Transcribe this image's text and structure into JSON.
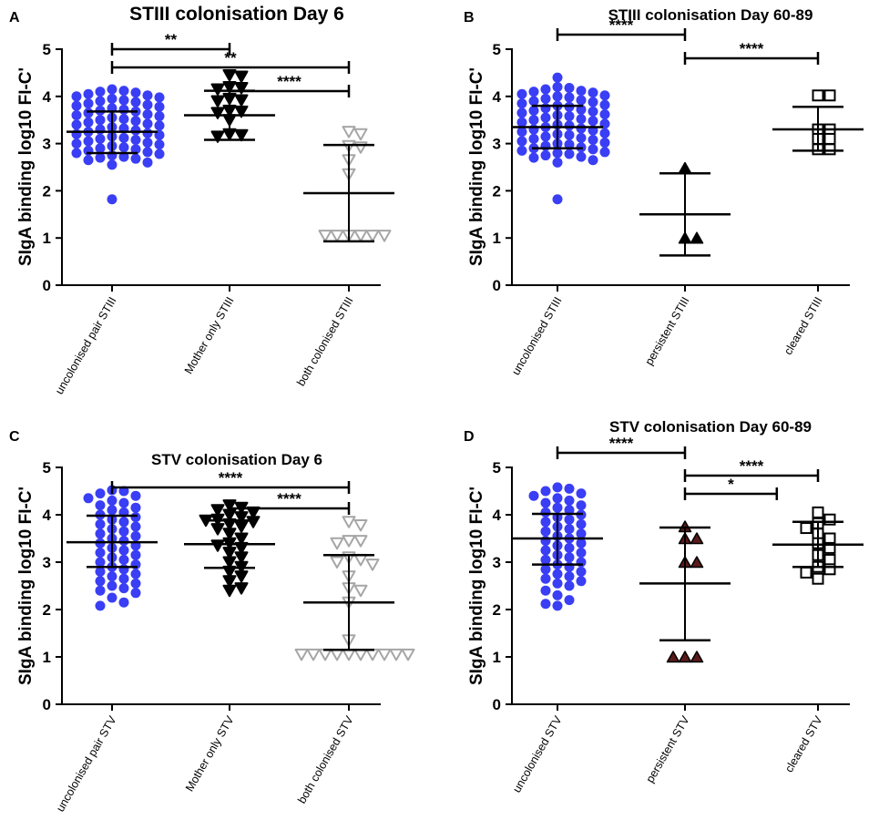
{
  "figure": {
    "colors": {
      "blue": "#3a3ef5",
      "black": "#000000",
      "gray": "#a6a6a6",
      "dark_red": "#5a1a1a",
      "axis": "#000000"
    }
  },
  "chart_data": [
    {
      "panel_label": "A",
      "type": "scatter",
      "title": "STIII colonisation Day 6",
      "ylabel": "SIgA binding log10 FI-C'",
      "ylim": [
        0,
        5
      ],
      "yticks": [
        "0",
        "1",
        "2",
        "3",
        "4",
        "5"
      ],
      "categories": [
        "uncolonised pair STIII",
        "Mother only STIII",
        "both colonised STIII"
      ],
      "groups": [
        {
          "marker": "circle",
          "color": "#3a3ef5",
          "mean": 3.25,
          "sd_low": 2.8,
          "sd_high": 3.68,
          "values": [
            4.15,
            4.12,
            4.1,
            4.08,
            4.05,
            4.02,
            4.0,
            3.98,
            3.95,
            3.92,
            3.9,
            3.88,
            3.85,
            3.82,
            3.8,
            3.78,
            3.75,
            3.72,
            3.7,
            3.68,
            3.65,
            3.62,
            3.6,
            3.58,
            3.55,
            3.52,
            3.5,
            3.48,
            3.45,
            3.42,
            3.4,
            3.38,
            3.35,
            3.32,
            3.3,
            3.28,
            3.25,
            3.22,
            3.2,
            3.18,
            3.15,
            3.12,
            3.1,
            3.08,
            3.05,
            3.02,
            3.0,
            2.98,
            2.95,
            2.92,
            2.9,
            2.88,
            2.85,
            2.82,
            2.8,
            2.78,
            2.75,
            2.72,
            2.7,
            2.68,
            2.65,
            2.6,
            2.55,
            1.82
          ]
        },
        {
          "marker": "triangle-down",
          "color": "#000000",
          "fill": "#000000",
          "mean": 3.6,
          "sd_low": 3.08,
          "sd_high": 4.12,
          "values": [
            4.45,
            4.42,
            4.2,
            4.18,
            4.15,
            3.95,
            3.92,
            3.9,
            3.7,
            3.68,
            3.65,
            3.5,
            3.2,
            3.18,
            3.15
          ]
        },
        {
          "marker": "triangle-down",
          "color": "#a6a6a6",
          "fill": "none",
          "mean": 1.95,
          "sd_low": 0.93,
          "sd_high": 2.97,
          "values": [
            3.25,
            3.2,
            2.95,
            2.92,
            2.65,
            2.35,
            1.05,
            1.05,
            1.05,
            1.05,
            1.05,
            1.05
          ]
        }
      ],
      "brackets": [
        {
          "from": 0,
          "to": 1,
          "label": "**"
        },
        {
          "from": 0,
          "to": 2,
          "label": "**"
        },
        {
          "from": 1,
          "to": 2,
          "label": "****"
        }
      ]
    },
    {
      "panel_label": "B",
      "type": "scatter",
      "title": "STIII colonisation Day 60-89",
      "ylabel": "SIgA binding log10 FI-C'",
      "ylim": [
        0,
        5
      ],
      "yticks": [
        "0",
        "1",
        "2",
        "3",
        "4",
        "5"
      ],
      "categories": [
        "uncolonised STIII",
        "persistent STIII",
        "cleared STIII"
      ],
      "groups": [
        {
          "marker": "circle",
          "color": "#3a3ef5",
          "mean": 3.35,
          "sd_low": 2.9,
          "sd_high": 3.8,
          "values": [
            4.4,
            4.2,
            4.18,
            4.15,
            4.12,
            4.1,
            4.08,
            4.05,
            4.02,
            4.0,
            3.98,
            3.95,
            3.92,
            3.9,
            3.88,
            3.85,
            3.82,
            3.8,
            3.78,
            3.75,
            3.72,
            3.7,
            3.68,
            3.65,
            3.62,
            3.6,
            3.58,
            3.55,
            3.52,
            3.5,
            3.48,
            3.45,
            3.42,
            3.4,
            3.38,
            3.35,
            3.32,
            3.3,
            3.28,
            3.25,
            3.22,
            3.2,
            3.18,
            3.15,
            3.12,
            3.1,
            3.08,
            3.05,
            3.02,
            3.0,
            2.98,
            2.95,
            2.92,
            2.9,
            2.88,
            2.85,
            2.82,
            2.8,
            2.78,
            2.75,
            2.72,
            2.7,
            2.65,
            2.6,
            1.82
          ]
        },
        {
          "marker": "triangle-up",
          "color": "#000000",
          "fill": "#000000",
          "mean": 1.5,
          "sd_low": 0.63,
          "sd_high": 2.37,
          "values": [
            2.48,
            1.0,
            1.0
          ]
        },
        {
          "marker": "square",
          "color": "#000000",
          "fill": "none",
          "mean": 3.3,
          "sd_low": 2.85,
          "sd_high": 3.78,
          "values": [
            4.02,
            4.02,
            3.3,
            3.3,
            3.1,
            3.1,
            2.88,
            2.88
          ]
        }
      ],
      "brackets": [
        {
          "from": 0,
          "to": 1,
          "label": "****"
        },
        {
          "from": 1,
          "to": 2,
          "label": "****"
        }
      ]
    },
    {
      "panel_label": "C",
      "type": "scatter",
      "title": "STV colonisation Day 6",
      "ylabel": "SIgA binding log10 FI-C'",
      "ylim": [
        0,
        5
      ],
      "yticks": [
        "0",
        "1",
        "2",
        "3",
        "4",
        "5"
      ],
      "categories": [
        "uncolonised pair STV",
        "Mother only STV",
        "both colonised STV"
      ],
      "groups": [
        {
          "marker": "circle",
          "color": "#3a3ef5",
          "mean": 3.42,
          "sd_low": 2.9,
          "sd_high": 3.98,
          "values": [
            4.52,
            4.5,
            4.45,
            4.4,
            4.35,
            4.3,
            4.25,
            4.2,
            4.15,
            4.1,
            4.05,
            4.0,
            3.95,
            3.9,
            3.85,
            3.8,
            3.75,
            3.7,
            3.65,
            3.6,
            3.55,
            3.5,
            3.45,
            3.4,
            3.35,
            3.3,
            3.25,
            3.2,
            3.15,
            3.1,
            3.05,
            3.0,
            2.95,
            2.9,
            2.85,
            2.8,
            2.75,
            2.7,
            2.65,
            2.6,
            2.55,
            2.5,
            2.45,
            2.4,
            2.35,
            2.25,
            2.15,
            2.08
          ]
        },
        {
          "marker": "triangle-down",
          "color": "#000000",
          "fill": "#000000",
          "mean": 3.38,
          "sd_low": 2.88,
          "sd_high": 3.88,
          "values": [
            4.2,
            4.15,
            4.1,
            4.05,
            4.0,
            3.95,
            3.9,
            3.88,
            3.85,
            3.8,
            3.75,
            3.7,
            3.6,
            3.5,
            3.4,
            3.35,
            3.3,
            3.2,
            3.1,
            3.0,
            2.9,
            2.8,
            2.7,
            2.6,
            2.45,
            2.4
          ]
        },
        {
          "marker": "triangle-down",
          "color": "#a6a6a6",
          "fill": "none",
          "mean": 2.15,
          "sd_low": 1.15,
          "sd_high": 3.15,
          "values": [
            3.85,
            3.78,
            3.45,
            3.45,
            3.4,
            3.1,
            3.05,
            3.0,
            2.95,
            2.7,
            2.45,
            2.4,
            2.15,
            1.35,
            1.05,
            1.05,
            1.05,
            1.05,
            1.05,
            1.05,
            1.05,
            1.05,
            1.05,
            1.05
          ]
        }
      ],
      "brackets": [
        {
          "from": 0,
          "to": 2,
          "label": "****"
        },
        {
          "from": 1,
          "to": 2,
          "label": "****"
        }
      ]
    },
    {
      "panel_label": "D",
      "type": "scatter",
      "title": "STV colonisation Day 60-89",
      "ylabel": "SIgA binding log10 FI-C'",
      "ylim": [
        0,
        5
      ],
      "yticks": [
        "0",
        "1",
        "2",
        "3",
        "4",
        "5"
      ],
      "categories": [
        "uncolonised STV",
        "persistent STV",
        "cleared STV"
      ],
      "groups": [
        {
          "marker": "circle",
          "color": "#3a3ef5",
          "mean": 3.5,
          "sd_low": 2.95,
          "sd_high": 4.02,
          "values": [
            4.58,
            4.55,
            4.5,
            4.45,
            4.4,
            4.35,
            4.3,
            4.25,
            4.2,
            4.15,
            4.1,
            4.05,
            4.0,
            3.95,
            3.9,
            3.85,
            3.8,
            3.75,
            3.7,
            3.65,
            3.6,
            3.55,
            3.5,
            3.45,
            3.4,
            3.35,
            3.3,
            3.25,
            3.2,
            3.15,
            3.1,
            3.05,
            3.0,
            2.95,
            2.9,
            2.85,
            2.8,
            2.75,
            2.7,
            2.65,
            2.6,
            2.55,
            2.5,
            2.4,
            2.3,
            2.2,
            2.12,
            2.08
          ]
        },
        {
          "marker": "triangle-up",
          "color": "#000000",
          "fill": "#5a1a1a",
          "mean": 2.55,
          "sd_low": 1.35,
          "sd_high": 3.73,
          "values": [
            3.75,
            3.5,
            3.5,
            3.0,
            3.0,
            1.0,
            1.0,
            1.0
          ]
        },
        {
          "marker": "square",
          "color": "#000000",
          "fill": "none",
          "mean": 3.37,
          "sd_low": 2.9,
          "sd_high": 3.85,
          "values": [
            4.05,
            3.9,
            3.82,
            3.72,
            3.6,
            3.5,
            3.4,
            3.3,
            3.15,
            3.05,
            2.9,
            2.85,
            2.78,
            2.65
          ]
        }
      ],
      "brackets": [
        {
          "from": 0,
          "to": 1,
          "label": "****"
        },
        {
          "from": 1,
          "to": 2,
          "label": "****"
        },
        {
          "from": 1,
          "to": 1.72,
          "label": "*"
        }
      ]
    }
  ]
}
